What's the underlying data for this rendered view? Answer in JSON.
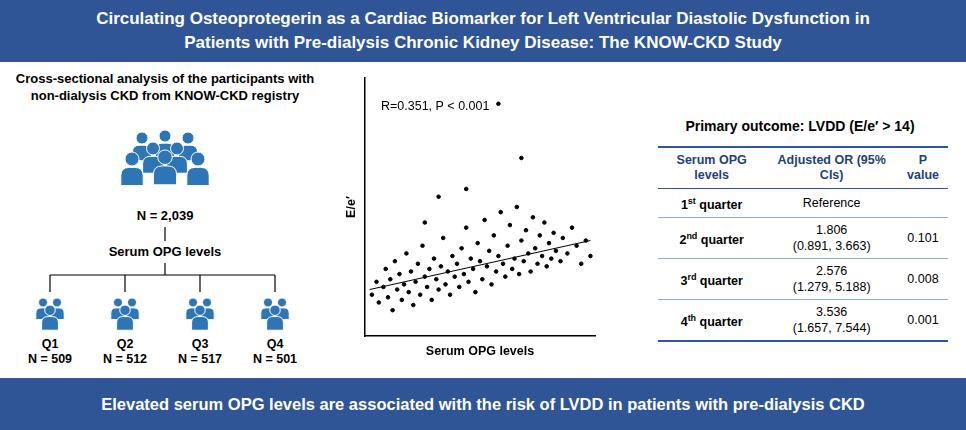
{
  "header": {
    "title_lines": [
      "Circulating Osteoprotegerin as a Cardiac Biomarker for Left Ventricular Diastolic Dysfunction in",
      "Patients with Pre-dialysis Chronic Kidney Disease: The KNOW-CKD Study"
    ]
  },
  "study": {
    "description": "Cross-sectional analysis of the participants with non-dialysis CKD from KNOW-CKD registry",
    "total": "N = 2,039",
    "grouping": "Serum OPG levels",
    "groups": [
      {
        "label": "Q1",
        "n": "N = 509"
      },
      {
        "label": "Q2",
        "n": "N = 512"
      },
      {
        "label": "Q3",
        "n": "N = 517"
      },
      {
        "label": "Q4",
        "n": "N = 501"
      }
    ]
  },
  "chart_data": {
    "type": "scatter",
    "x_label": "Serum OPG levels",
    "y_label": "E/e′",
    "annotation": "R=0.351, P < 0.001",
    "color": "#000000",
    "x": [
      0.3,
      0.5,
      0.6,
      0.8,
      0.9,
      1.0,
      1.1,
      1.2,
      1.3,
      1.4,
      1.5,
      1.6,
      1.7,
      1.8,
      1.9,
      2.0,
      2.1,
      2.2,
      2.3,
      2.4,
      2.5,
      2.6,
      2.7,
      2.8,
      2.9,
      3.0,
      3.1,
      3.2,
      3.3,
      3.4,
      3.5,
      3.6,
      3.7,
      3.8,
      3.9,
      4.0,
      4.1,
      4.2,
      4.3,
      4.4,
      4.5,
      4.6,
      4.7,
      4.8,
      4.9,
      5.0,
      5.1,
      5.2,
      5.3,
      5.4,
      5.5,
      5.6,
      5.7,
      5.8,
      5.9,
      6.0,
      6.1,
      6.2,
      6.3,
      6.4,
      6.5,
      6.6,
      6.7,
      6.8,
      6.9,
      7.0,
      7.1,
      7.2,
      7.3,
      7.4,
      7.5,
      7.6,
      7.7,
      7.8,
      7.9,
      8.0,
      8.1,
      8.2,
      8.3,
      8.5,
      8.6,
      8.8,
      9.0,
      9.2,
      9.4,
      9.6,
      9.8,
      5.8,
      6.8,
      4.4,
      3.2,
      2.6
    ],
    "values": [
      1.6,
      2.1,
      1.3,
      1.9,
      2.6,
      1.5,
      2.2,
      1.0,
      2.9,
      1.8,
      2.4,
      1.4,
      2.0,
      3.2,
      1.7,
      2.5,
      1.2,
      2.1,
      2.8,
      1.6,
      3.5,
      2.3,
      1.9,
      2.6,
      1.4,
      3.0,
      2.2,
      1.8,
      2.7,
      3.8,
      2.0,
      2.5,
      1.6,
      3.1,
      2.3,
      2.8,
      1.9,
      3.4,
      2.4,
      4.2,
      2.1,
      3.0,
      2.6,
      1.7,
      3.6,
      2.9,
      2.2,
      4.5,
      2.7,
      3.3,
      2.0,
      3.9,
      2.5,
      3.1,
      4.8,
      2.8,
      2.3,
      3.5,
      4.3,
      2.6,
      3.0,
      5.0,
      2.4,
      3.7,
      2.9,
      4.1,
      3.2,
      2.5,
      4.6,
      3.4,
      2.8,
      3.9,
      3.1,
      4.4,
      2.7,
      3.6,
      3.0,
      4.0,
      3.3,
      2.9,
      3.8,
      3.2,
      4.2,
      3.5,
      2.8,
      3.7,
      3.1,
      9.0,
      6.9,
      5.7,
      5.4,
      4.4
    ],
    "trend_line": {
      "x": [
        0.2,
        9.8
      ],
      "values": [
        1.8,
        3.7
      ]
    },
    "xlim": [
      0,
      10
    ],
    "ylim": [
      0,
      10
    ],
    "xticks": [],
    "yticks": [],
    "tick_labels": false,
    "grid": false
  },
  "table": {
    "title": "Primary outcome: LVDD (E/e′ > 14)",
    "columns": [
      "Serum OPG levels",
      "Adjusted OR (95% CIs)",
      "P value"
    ],
    "rows": [
      {
        "group": "1st quarter",
        "or": "Reference",
        "ci": null,
        "p": null
      },
      {
        "group": "2nd quarter",
        "or": "1.806",
        "ci": "(0.891, 3.663)",
        "p": "0.101"
      },
      {
        "group": "3rd quarter",
        "or": "2.576",
        "ci": "(1.279, 5.188)",
        "p": "0.008"
      },
      {
        "group": "4th quarter",
        "or": "3.536",
        "ci": "(1.657, 7.544)",
        "p": "0.001"
      }
    ]
  },
  "footer": {
    "text": "Elevated serum OPG levels are associated with the risk of LVDD in patients with pre-dialysis CKD"
  }
}
